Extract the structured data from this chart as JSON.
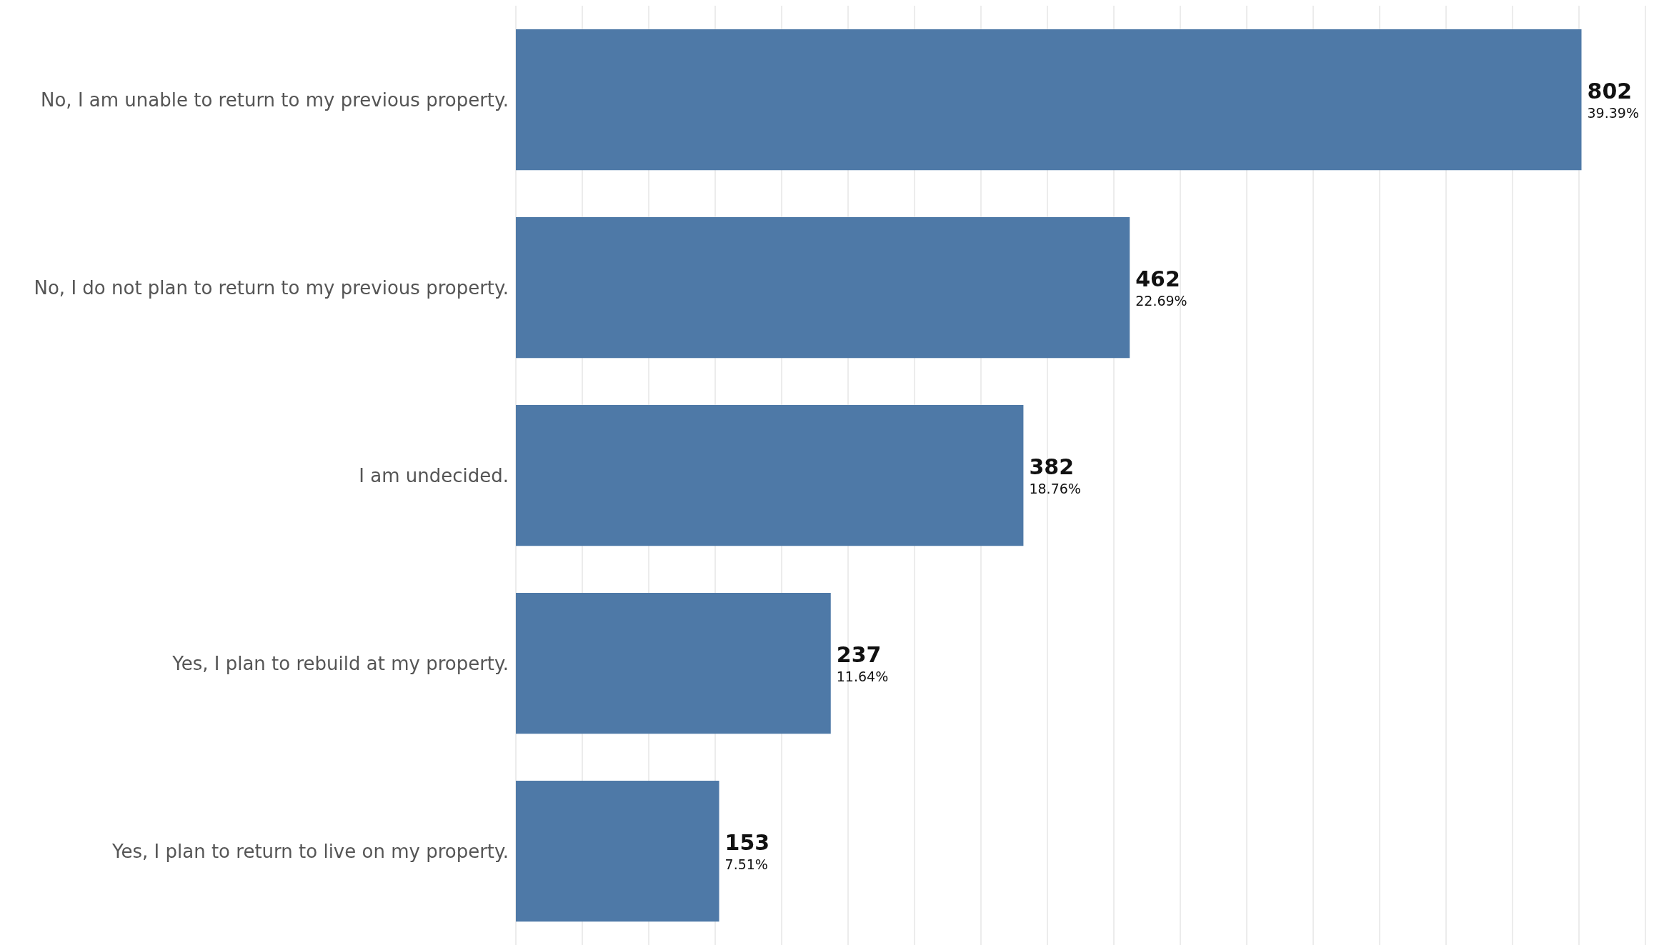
{
  "chart_data": {
    "type": "bar",
    "orientation": "horizontal",
    "categories": [
      "No, I am unable to return to my previous property.",
      "No, I do not plan to return to my previous property.",
      "I am undecided.",
      "Yes, I plan to rebuild at my property.",
      "Yes, I plan to return to live on my property."
    ],
    "values": [
      802,
      462,
      382,
      237,
      153
    ],
    "value_labels": [
      "802\n39.39%",
      "462\n22.69%",
      "382\n18.76%",
      "237\n11.64%",
      "153\n7.51%"
    ],
    "color": "#4e79a7",
    "grid": "x",
    "tick_labels": "y"
  }
}
